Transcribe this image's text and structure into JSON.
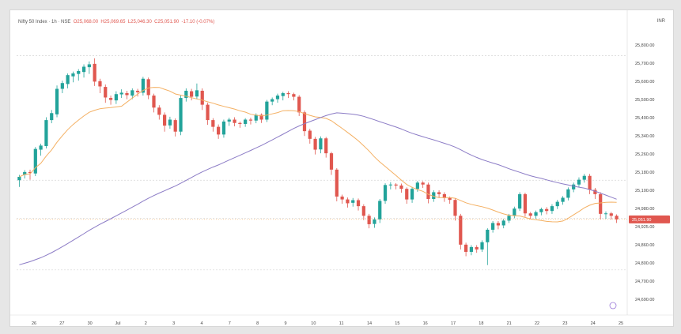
{
  "chart_data": {
    "type": "candlestick",
    "title": "Nifty 50 Index · 1h · NSE",
    "ohlc_summary": {
      "O": "O25,068.00",
      "H": "H25,069.65",
      "L": "L25,046.30",
      "C": "C25,051.90",
      "change": "-17.10 (-0.07%)"
    },
    "currency": "INR",
    "y_ticks": [
      "25,800.00",
      "25,700.00",
      "25,600.00",
      "25,500.00",
      "25,400.00",
      "25,340.00",
      "25,260.00",
      "25,180.00",
      "25,100.00",
      "24,980.00",
      "24,925.00",
      "24,860.00",
      "24,800.00",
      "24,700.00",
      "24,690.00"
    ],
    "x_ticks": [
      "26",
      "27",
      "30",
      "Jul",
      "2",
      "3",
      "4",
      "7",
      "8",
      "9",
      "10",
      "11",
      "14",
      "15",
      "16",
      "17",
      "18",
      "21",
      "22",
      "23",
      "24",
      "25"
    ],
    "last_price_label": "25,051.90",
    "colors": {
      "up": "#22a39a",
      "down": "#e0574f",
      "ma_fast": "#f4b063",
      "ma_slow": "#8c7cc6",
      "price_line": "#f4b063",
      "grid": "#d5d5d5"
    },
    "ylim": [
      24690,
      25800
    ],
    "h_levels": [
      25736,
      25218,
      25060,
      24845
    ],
    "candles": [
      [
        25218,
        25232,
        25198,
        25240,
        25190
      ],
      [
        25240,
        25252,
        25233,
        25260,
        25225
      ],
      [
        25252,
        25248,
        25228,
        25262,
        25220
      ],
      [
        25246,
        25348,
        25242,
        25356,
        25235
      ],
      [
        25345,
        25362,
        25328,
        25370,
        25320
      ],
      [
        25360,
        25468,
        25355,
        25480,
        25350
      ],
      [
        25468,
        25497,
        25460,
        25510,
        25455
      ],
      [
        25492,
        25598,
        25485,
        25612,
        25480
      ],
      [
        25598,
        25622,
        25590,
        25632,
        25580
      ],
      [
        25618,
        25655,
        25610,
        25662,
        25600
      ],
      [
        25650,
        25662,
        25632,
        25670,
        25625
      ],
      [
        25660,
        25672,
        25640,
        25680,
        25632
      ],
      [
        25668,
        25690,
        25650,
        25700,
        25645
      ],
      [
        25688,
        25700,
        25668,
        25712,
        25660
      ],
      [
        25702,
        25628,
        25620,
        25725,
        25610
      ],
      [
        25630,
        25608,
        25590,
        25640,
        25580
      ],
      [
        25606,
        25562,
        25550,
        25616,
        25540
      ],
      [
        25560,
        25552,
        25538,
        25570,
        25532
      ],
      [
        25550,
        25576,
        25542,
        25588,
        25535
      ],
      [
        25575,
        25582,
        25565,
        25596,
        25560
      ],
      [
        25580,
        25572,
        25562,
        25590,
        25555
      ],
      [
        25570,
        25592,
        25562,
        25600,
        25555
      ],
      [
        25590,
        25584,
        25572,
        25598,
        25566
      ],
      [
        25582,
        25640,
        25575,
        25648,
        25570
      ],
      [
        25638,
        25572,
        25564,
        25645,
        25555
      ],
      [
        25570,
        25520,
        25510,
        25578,
        25500
      ],
      [
        25520,
        25490,
        25478,
        25530,
        25470
      ],
      [
        25490,
        25445,
        25432,
        25500,
        25420
      ],
      [
        25446,
        25470,
        25440,
        25482,
        25432
      ],
      [
        25468,
        25420,
        25410,
        25475,
        25400
      ],
      [
        25420,
        25560,
        25412,
        25570,
        25405
      ],
      [
        25560,
        25590,
        25550,
        25600,
        25545
      ],
      [
        25588,
        25565,
        25556,
        25598,
        25550
      ],
      [
        25566,
        25592,
        25560,
        25620,
        25555
      ],
      [
        25590,
        25532,
        25520,
        25600,
        25510
      ],
      [
        25532,
        25468,
        25455,
        25540,
        25448
      ],
      [
        25468,
        25440,
        25428,
        25476,
        25420
      ],
      [
        25440,
        25408,
        25395,
        25450,
        25390
      ],
      [
        25408,
        25462,
        25400,
        25470,
        25395
      ],
      [
        25462,
        25470,
        25450,
        25478,
        25444
      ],
      [
        25470,
        25456,
        25448,
        25480,
        25442
      ],
      [
        25456,
        25452,
        25440,
        25462,
        25436
      ],
      [
        25452,
        25470,
        25444,
        25476,
        25440
      ],
      [
        25470,
        25466,
        25456,
        25478,
        25450
      ],
      [
        25466,
        25490,
        25460,
        25496,
        25455
      ],
      [
        25490,
        25470,
        25462,
        25496,
        25456
      ],
      [
        25470,
        25545,
        25465,
        25552,
        25460
      ],
      [
        25545,
        25555,
        25536,
        25562,
        25530
      ],
      [
        25555,
        25570,
        25546,
        25578,
        25540
      ],
      [
        25568,
        25580,
        25556,
        25586,
        25550
      ],
      [
        25580,
        25576,
        25566,
        25588,
        25560
      ],
      [
        25576,
        25565,
        25556,
        25582,
        25550
      ],
      [
        25565,
        25500,
        25492,
        25572,
        25485
      ],
      [
        25500,
        25422,
        25410,
        25508,
        25402
      ],
      [
        25424,
        25390,
        25380,
        25432,
        25370
      ],
      [
        25390,
        25345,
        25335,
        25398,
        25325
      ],
      [
        25346,
        25392,
        25338,
        25400,
        25330
      ],
      [
        25392,
        25330,
        25320,
        25398,
        25312
      ],
      [
        25330,
        25262,
        25252,
        25336,
        25240
      ],
      [
        25262,
        25150,
        25140,
        25268,
        25130
      ],
      [
        25150,
        25138,
        25128,
        25158,
        25120
      ],
      [
        25138,
        25122,
        25112,
        25146,
        25104
      ],
      [
        25124,
        25135,
        25115,
        25144,
        25108
      ],
      [
        25135,
        25110,
        25100,
        25142,
        25092
      ],
      [
        25110,
        25070,
        25060,
        25118,
        25052
      ],
      [
        25070,
        25035,
        25026,
        25078,
        25018
      ],
      [
        25036,
        25055,
        25028,
        25063,
        25020
      ],
      [
        25055,
        25132,
        25048,
        25140,
        25040
      ],
      [
        25132,
        25198,
        25126,
        25205,
        25120
      ],
      [
        25198,
        25200,
        25188,
        25210,
        25180
      ],
      [
        25200,
        25196,
        25186,
        25206,
        25180
      ],
      [
        25196,
        25182,
        25172,
        25204,
        25166
      ],
      [
        25182,
        25138,
        25128,
        25188,
        25120
      ],
      [
        25138,
        25182,
        25130,
        25190,
        25124
      ],
      [
        25182,
        25208,
        25175,
        25215,
        25170
      ],
      [
        25208,
        25200,
        25192,
        25214,
        25186
      ],
      [
        25200,
        25140,
        25130,
        25208,
        25122
      ],
      [
        25140,
        25168,
        25134,
        25176,
        25128
      ],
      [
        25168,
        25160,
        25150,
        25176,
        25144
      ],
      [
        25160,
        25144,
        25134,
        25168,
        25128
      ],
      [
        25144,
        25136,
        25126,
        25150,
        25120
      ],
      [
        25136,
        25070,
        25060,
        25142,
        25050
      ],
      [
        25070,
        24950,
        24940,
        25078,
        24930
      ],
      [
        24950,
        24920,
        24910,
        24958,
        24902
      ],
      [
        24920,
        24940,
        24912,
        24948,
        24906
      ],
      [
        24940,
        24930,
        24922,
        24948,
        24916
      ],
      [
        24930,
        24960,
        24925,
        24968,
        24920
      ],
      [
        24960,
        25012,
        24955,
        25018,
        24865
      ],
      [
        25012,
        25040,
        25005,
        25048,
        25000
      ],
      [
        25040,
        25030,
        25020,
        25048,
        25014
      ],
      [
        25030,
        25050,
        25024,
        25058,
        25018
      ],
      [
        25050,
        25070,
        25044,
        25078,
        25040
      ],
      [
        25070,
        25100,
        25064,
        25108,
        25060
      ],
      [
        25100,
        25160,
        25095,
        25168,
        25090
      ],
      [
        25160,
        25080,
        25072,
        25166,
        25066
      ],
      [
        25080,
        25070,
        25062,
        25086,
        25056
      ],
      [
        25070,
        25085,
        25064,
        25092,
        25058
      ],
      [
        25085,
        25098,
        25078,
        25104,
        25072
      ],
      [
        25098,
        25090,
        25082,
        25106,
        25076
      ],
      [
        25090,
        25110,
        25084,
        25118,
        25078
      ],
      [
        25110,
        25128,
        25104,
        25136,
        25098
      ],
      [
        25128,
        25145,
        25122,
        25152,
        25116
      ],
      [
        25145,
        25180,
        25140,
        25188,
        25134
      ],
      [
        25180,
        25200,
        25174,
        25208,
        25168
      ],
      [
        25200,
        25220,
        25194,
        25230,
        25188
      ],
      [
        25220,
        25236,
        25214,
        25244,
        25208
      ],
      [
        25236,
        25178,
        25170,
        25244,
        25160
      ],
      [
        25178,
        25160,
        25150,
        25186,
        25140
      ],
      [
        25160,
        25078,
        25068,
        25168,
        25056
      ],
      [
        25078,
        25080,
        25064,
        25088,
        25058
      ],
      [
        25080,
        25070,
        25060,
        25086,
        25054
      ],
      [
        25070,
        25055,
        25046,
        25076,
        25040
      ]
    ],
    "candle_format": [
      "open",
      "close",
      "low_body",
      "high",
      "low"
    ]
  }
}
